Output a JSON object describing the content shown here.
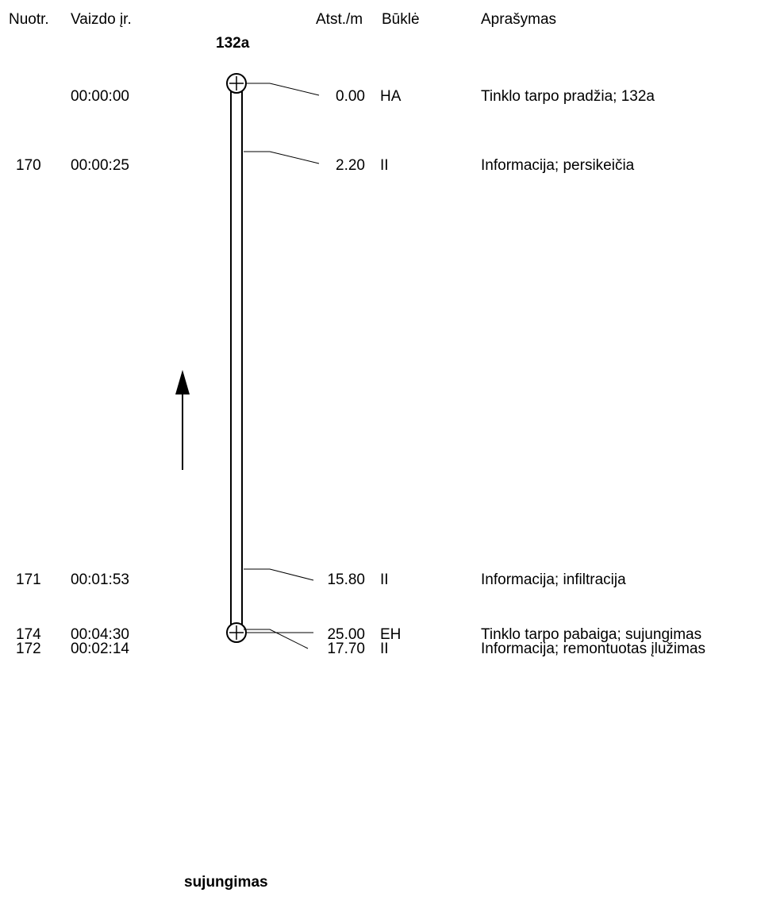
{
  "headers": {
    "photo": "Nuotr.",
    "video": "Vaizdo įr.",
    "distance": "Atst./m",
    "condition": "Būklė",
    "description": "Aprašymas"
  },
  "start_node": "132a",
  "end_node": "sujungimas",
  "direction": "up",
  "pipe_length_m": 25.0,
  "rows": [
    {
      "photo": "",
      "video": "00:00:00",
      "distance": "0.00",
      "condition": "HA",
      "description": "Tinklo tarpo pradžia; 132a"
    },
    {
      "photo": "170",
      "video": "00:00:25",
      "distance": "2.20",
      "condition": "II",
      "description": "Informacija; persikeičia"
    },
    {
      "photo": "171",
      "video": "00:01:53",
      "distance": "15.80",
      "condition": "II",
      "description": "Informacija; infiltracija"
    },
    {
      "photo": "172",
      "video": "00:02:14",
      "distance": "17.70",
      "condition": "II",
      "description": "Informacija; remontuotas įlužimas"
    },
    {
      "photo": "174",
      "video": "00:04:30",
      "distance": "25.00",
      "condition": "EH",
      "description": "Tinklo tarpo pabaiga; sujungimas"
    }
  ]
}
